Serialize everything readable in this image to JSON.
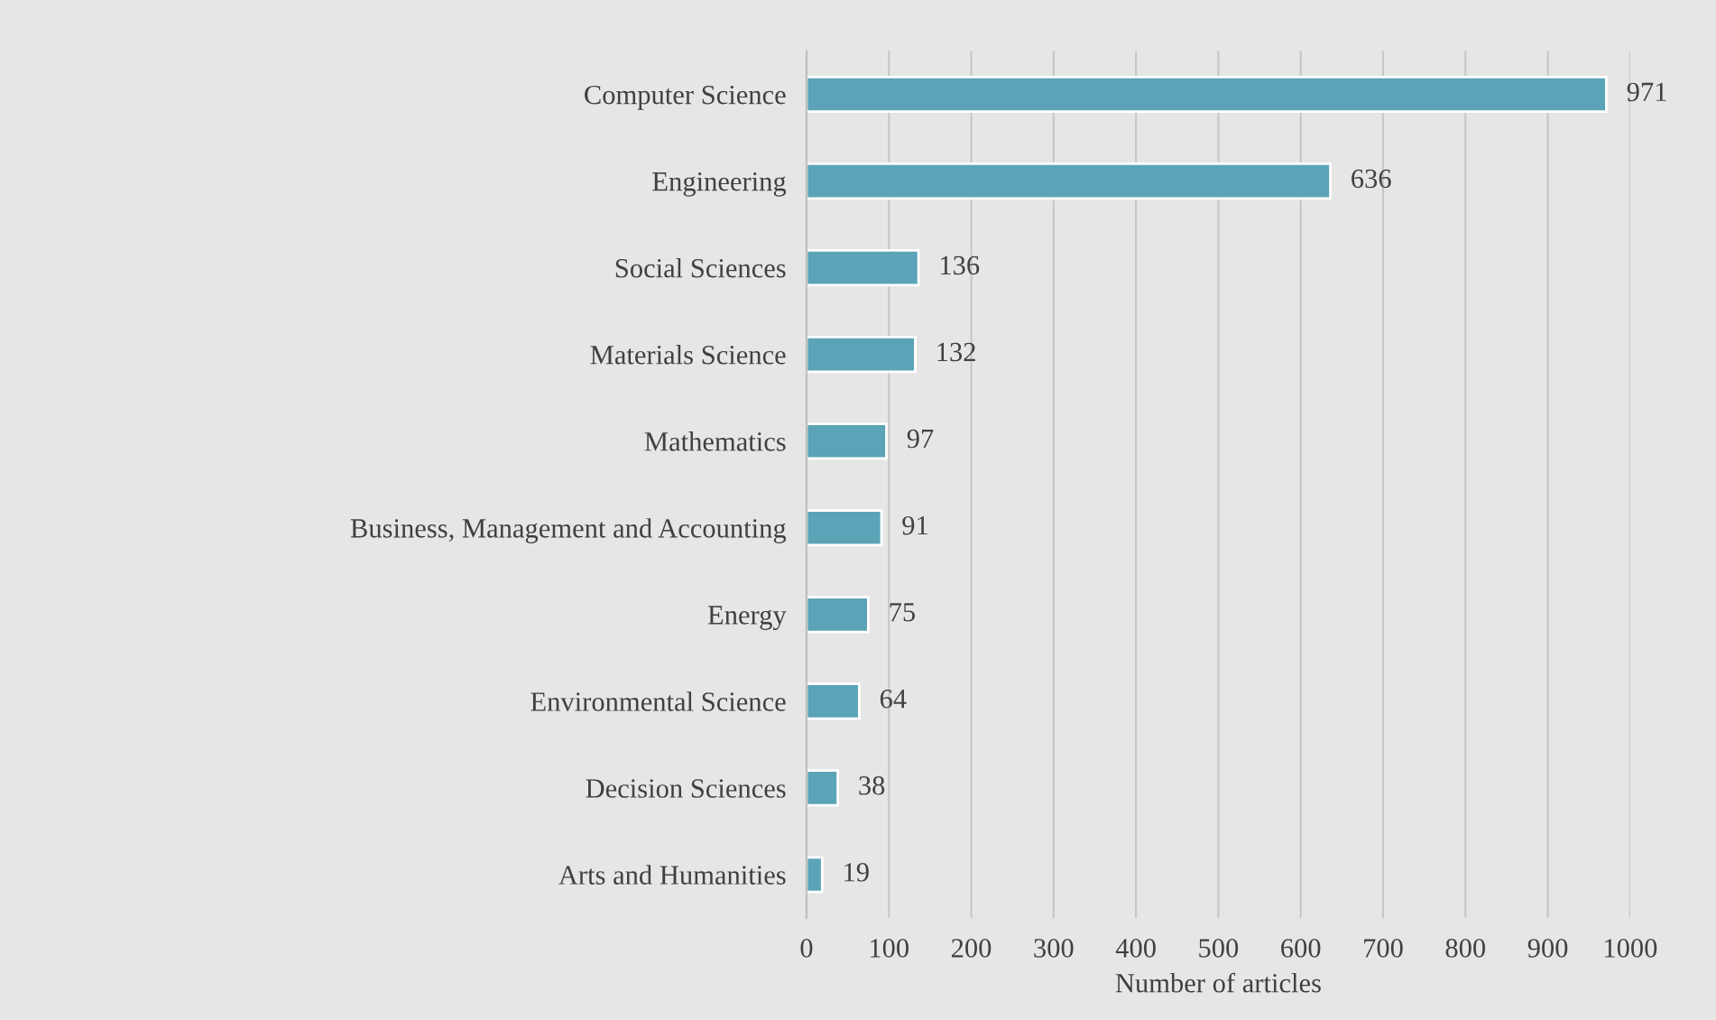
{
  "chart_data": {
    "type": "bar",
    "orientation": "horizontal",
    "xlabel": "Number of articles",
    "categories": [
      "Computer Science",
      "Engineering",
      "Social Sciences",
      "Materials Science",
      "Mathematics",
      "Business, Management and Accounting",
      "Energy",
      "Environmental Science",
      "Decision Sciences",
      "Arts and Humanities"
    ],
    "values": [
      971,
      636,
      136,
      132,
      97,
      91,
      75,
      64,
      38,
      19
    ],
    "color": "#5ba4b7",
    "xlim": [
      0,
      1000
    ],
    "xticks": [
      0,
      100,
      200,
      300,
      400,
      500,
      600,
      700,
      800,
      900,
      1000
    ],
    "grid": "x",
    "data_labels": true,
    "legend": false
  }
}
